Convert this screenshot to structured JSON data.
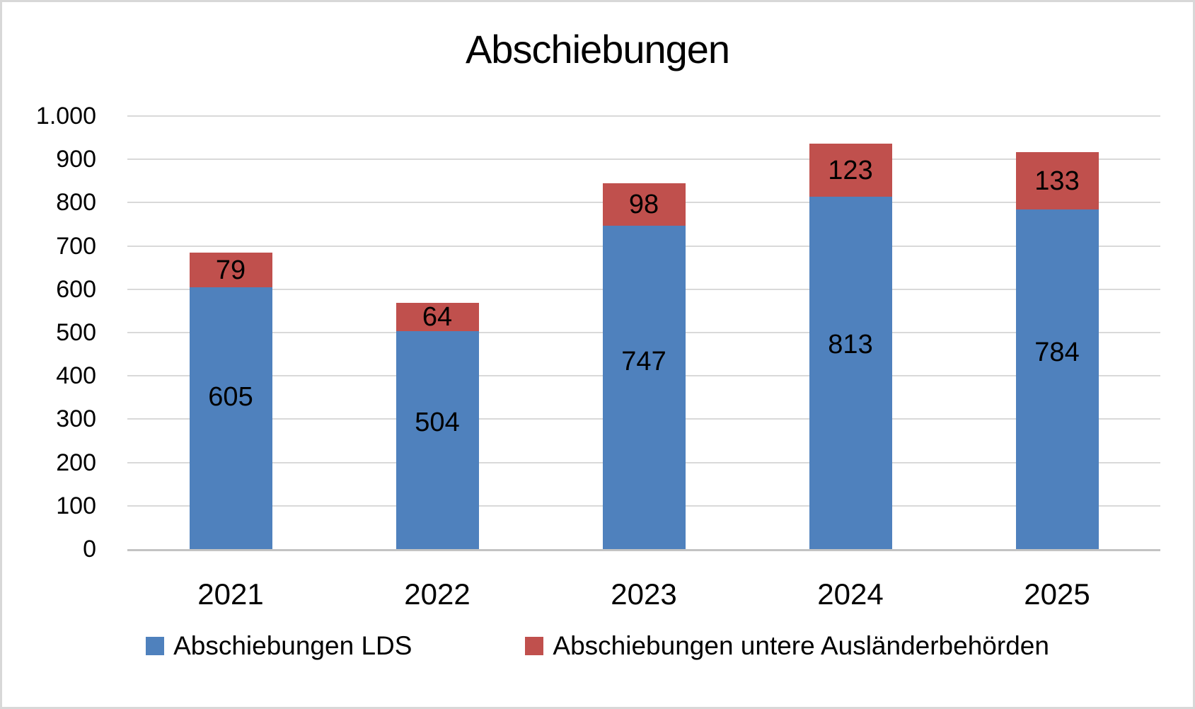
{
  "chart_data": {
    "type": "bar",
    "stacked": true,
    "title": "Abschiebungen",
    "categories": [
      "2021",
      "2022",
      "2023",
      "2024",
      "2025"
    ],
    "series": [
      {
        "name": "Abschiebungen LDS",
        "color": "#4F81BD",
        "values": [
          605,
          504,
          747,
          813,
          784
        ]
      },
      {
        "name": "Abschiebungen untere Ausländerbehörden",
        "color": "#C0504D",
        "values": [
          79,
          64,
          98,
          123,
          133
        ]
      }
    ],
    "totals": [
      684,
      568,
      845,
      936,
      917
    ],
    "xlabel": "",
    "ylabel": "",
    "ylim": [
      0,
      1000
    ],
    "ytick_step": 100,
    "ytick_labels": [
      "0",
      "100",
      "200",
      "300",
      "400",
      "500",
      "600",
      "700",
      "800",
      "900",
      "1.000"
    ],
    "grid": true,
    "gridline_color": "#D9D9D9",
    "axis_line_color": "#C3C3C3",
    "data_labels": true,
    "legend_position": "bottom"
  }
}
